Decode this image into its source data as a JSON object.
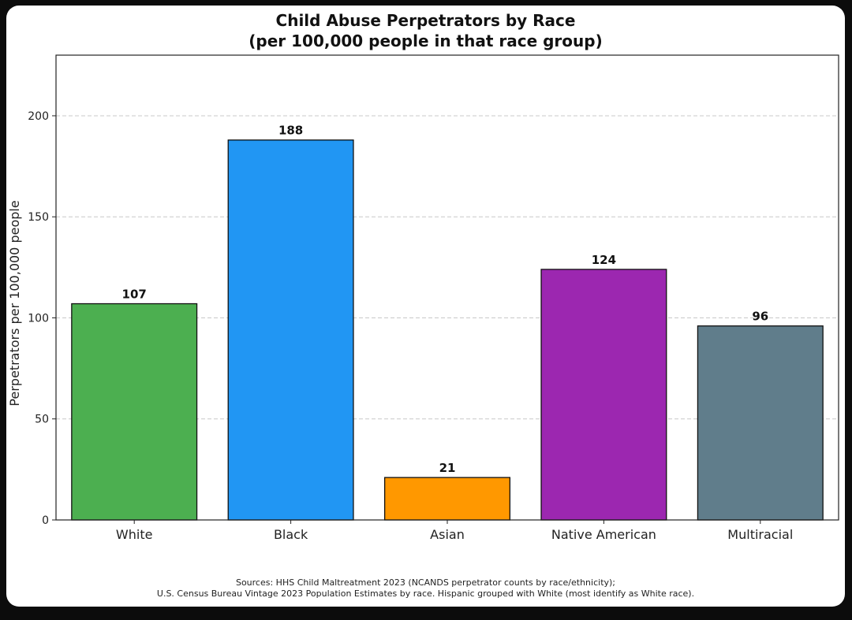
{
  "chart_data": {
    "type": "bar",
    "title": "Child Abuse Perpetrators by Race",
    "subtitle": "(per 100,000 people in that race group)",
    "xlabel": "",
    "ylabel": "Perpetrators per 100,000 people",
    "categories": [
      "White",
      "Black",
      "Asian",
      "Native American",
      "Multiracial"
    ],
    "values": [
      107,
      188,
      21,
      124,
      96
    ],
    "data_labels": [
      "107",
      "188",
      "21",
      "124",
      "96"
    ],
    "colors": [
      "#4caf50",
      "#2196f3",
      "#ff9800",
      "#9c27b0",
      "#607d8b"
    ],
    "ylim": [
      0,
      230
    ],
    "yticks": [
      0,
      50,
      100,
      150,
      200
    ],
    "grid": "horizontal dashed",
    "legend": "none"
  },
  "footnote": {
    "line1": "Sources: HHS Child Maltreatment 2023 (NCANDS perpetrator counts by race/ethnicity);",
    "line2": "U.S. Census Bureau Vintage 2023 Population Estimates by race. Hispanic grouped with White (most identify as White race)."
  }
}
